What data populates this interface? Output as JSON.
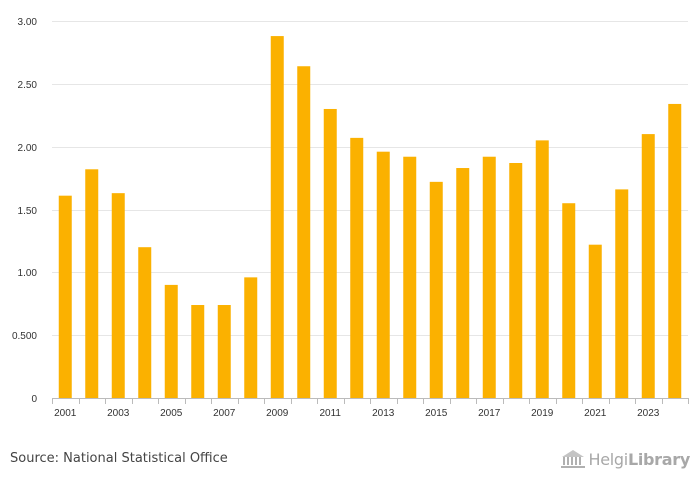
{
  "chart_data": {
    "type": "bar",
    "categories": [
      "2001",
      "2002",
      "2003",
      "2004",
      "2005",
      "2006",
      "2007",
      "2008",
      "2009",
      "2010",
      "2011",
      "2012",
      "2013",
      "2014",
      "2015",
      "2016",
      "2017",
      "2018",
      "2019",
      "2020",
      "2021",
      "2022",
      "2023",
      "2024"
    ],
    "values": [
      1.61,
      1.82,
      1.63,
      1.2,
      0.9,
      0.74,
      0.74,
      0.96,
      2.88,
      2.64,
      2.3,
      2.07,
      1.96,
      1.92,
      1.72,
      1.83,
      1.92,
      1.87,
      2.05,
      1.55,
      1.22,
      1.66,
      2.1,
      2.34
    ],
    "x_tick_labels": [
      "2001",
      "2003",
      "2005",
      "2007",
      "2009",
      "2011",
      "2013",
      "2015",
      "2017",
      "2019",
      "2021",
      "2023"
    ],
    "y_ticks": [
      0,
      0.5,
      1.0,
      1.5,
      2.0,
      2.5,
      3.0
    ],
    "y_tick_labels": [
      "0",
      "0.500",
      "1.00",
      "1.50",
      "2.00",
      "2.50",
      "3.00"
    ],
    "ylim": [
      0,
      3.0
    ],
    "title": "",
    "xlabel": "",
    "ylabel": "",
    "grid": true,
    "colors": {
      "bar": "#FBB100",
      "grid": "#e6e6e6",
      "axis": "#bbbbbb"
    }
  },
  "footer": {
    "source": "Source: National Statistical Office",
    "brand_prefix": "Helgi",
    "brand_name": "Library"
  }
}
